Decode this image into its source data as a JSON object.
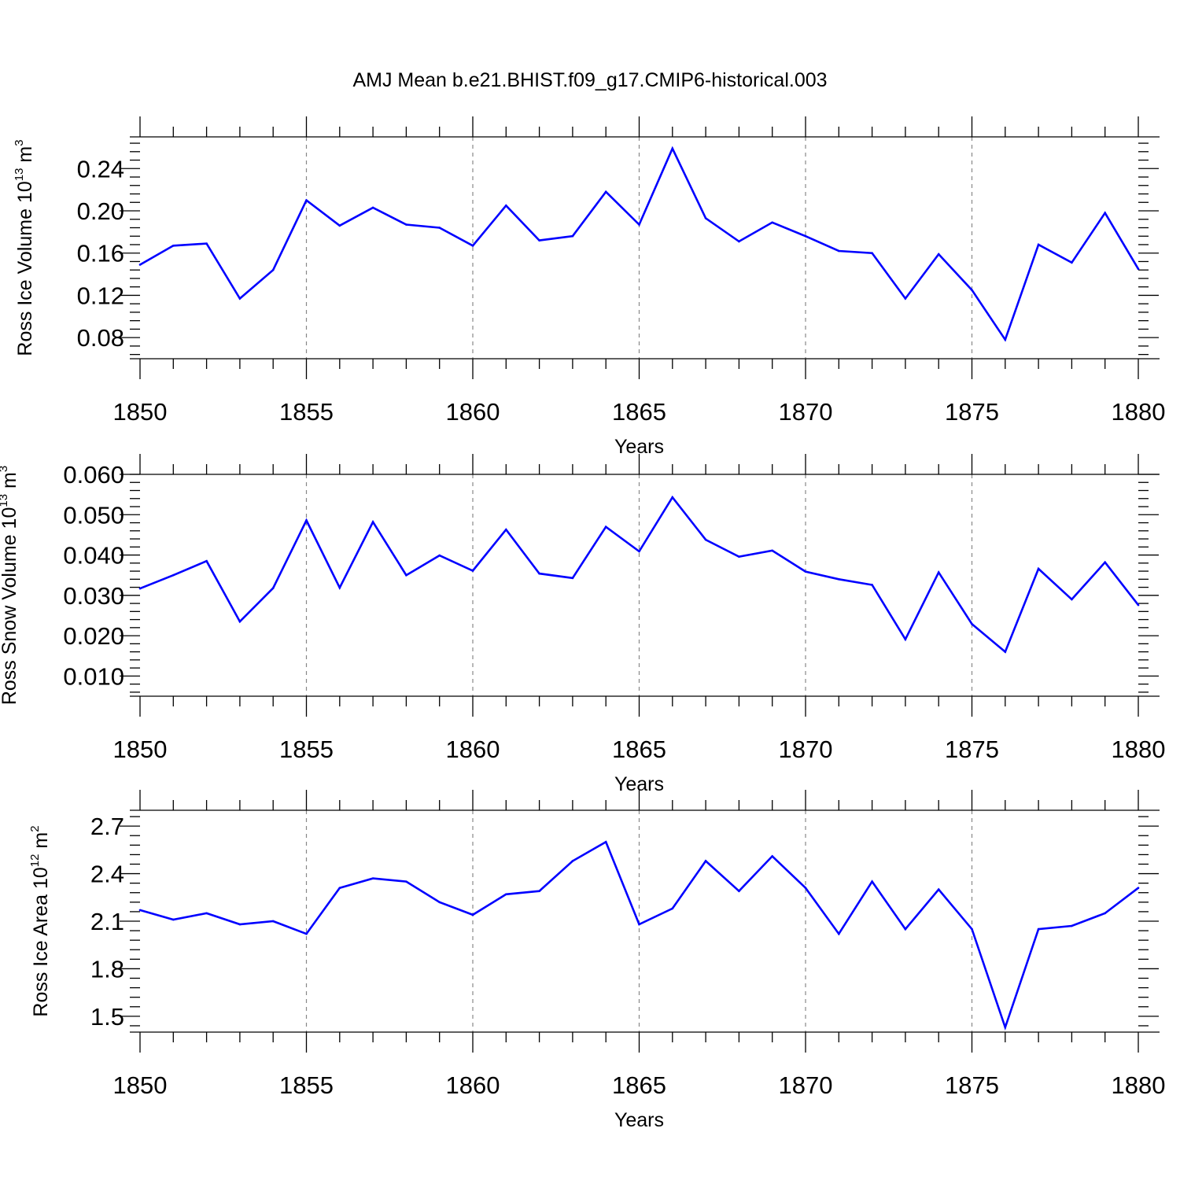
{
  "title": "AMJ Mean b.e21.BHIST.f09_g17.CMIP6-historical.003",
  "colors": {
    "series": "#0000ff",
    "axis": "#000000",
    "grid": "#888888"
  },
  "chart_data": [
    {
      "type": "line",
      "xlabel": "Years",
      "ylabel": {
        "prefix": "Ross Ice Volume 10",
        "exponent": "13",
        "unit": " m",
        "unit_exponent": "3"
      },
      "xlim": [
        1850,
        1880
      ],
      "ylim": [
        0.06,
        0.27
      ],
      "x_ticks": [
        "1850",
        "1855",
        "1860",
        "1865",
        "1870",
        "1875",
        "1880"
      ],
      "y_ticks": [
        "0.08",
        "0.12",
        "0.16",
        "0.20",
        "0.24"
      ],
      "grid": "dashed vertical at labeled x ticks",
      "x": [
        1850,
        1851,
        1852,
        1853,
        1854,
        1855,
        1856,
        1857,
        1858,
        1859,
        1860,
        1861,
        1862,
        1863,
        1864,
        1865,
        1866,
        1867,
        1868,
        1869,
        1870,
        1871,
        1872,
        1873,
        1874,
        1875,
        1876,
        1877,
        1878,
        1879,
        1880
      ],
      "values": [
        0.149,
        0.167,
        0.169,
        0.117,
        0.144,
        0.21,
        0.186,
        0.203,
        0.187,
        0.184,
        0.167,
        0.205,
        0.172,
        0.176,
        0.218,
        0.187,
        0.259,
        0.193,
        0.171,
        0.189,
        0.176,
        0.162,
        0.16,
        0.117,
        0.159,
        0.125,
        0.078,
        0.168,
        0.151,
        0.198,
        0.145
      ]
    },
    {
      "type": "line",
      "xlabel": "Years",
      "ylabel": {
        "prefix": "Ross Snow Volume 10",
        "exponent": "13",
        "unit": " m",
        "unit_exponent": "3"
      },
      "xlim": [
        1850,
        1880
      ],
      "ylim": [
        0.005,
        0.06
      ],
      "x_ticks": [
        "1850",
        "1855",
        "1860",
        "1865",
        "1870",
        "1875",
        "1880"
      ],
      "y_ticks": [
        "0.010",
        "0.020",
        "0.030",
        "0.040",
        "0.050",
        "0.060"
      ],
      "grid": "dashed vertical at labeled x ticks",
      "x": [
        1850,
        1851,
        1852,
        1853,
        1854,
        1855,
        1856,
        1857,
        1858,
        1859,
        1860,
        1861,
        1862,
        1863,
        1864,
        1865,
        1866,
        1867,
        1868,
        1869,
        1870,
        1871,
        1872,
        1873,
        1874,
        1875,
        1876,
        1877,
        1878,
        1879,
        1880
      ],
      "values": [
        0.0317,
        0.035,
        0.0385,
        0.0235,
        0.0318,
        0.0486,
        0.0319,
        0.0482,
        0.035,
        0.0399,
        0.0361,
        0.0463,
        0.0354,
        0.0343,
        0.047,
        0.0409,
        0.0543,
        0.0438,
        0.0396,
        0.0411,
        0.0359,
        0.034,
        0.0326,
        0.0191,
        0.0357,
        0.0229,
        0.016,
        0.0366,
        0.029,
        0.0382,
        0.0276
      ]
    },
    {
      "type": "line",
      "xlabel": "Years",
      "ylabel": {
        "prefix": "Ross Ice Area 10",
        "exponent": "12",
        "unit": " m",
        "unit_exponent": "2"
      },
      "xlim": [
        1850,
        1880
      ],
      "ylim": [
        1.4,
        2.8
      ],
      "x_ticks": [
        "1850",
        "1855",
        "1860",
        "1865",
        "1870",
        "1875",
        "1880"
      ],
      "y_ticks": [
        "1.5",
        "1.8",
        "2.1",
        "2.4",
        "2.7"
      ],
      "grid": "dashed vertical at labeled x ticks",
      "x": [
        1850,
        1851,
        1852,
        1853,
        1854,
        1855,
        1856,
        1857,
        1858,
        1859,
        1860,
        1861,
        1862,
        1863,
        1864,
        1865,
        1866,
        1867,
        1868,
        1869,
        1870,
        1871,
        1872,
        1873,
        1874,
        1875,
        1876,
        1877,
        1878,
        1879,
        1880
      ],
      "values": [
        2.17,
        2.11,
        2.15,
        2.08,
        2.1,
        2.02,
        2.31,
        2.37,
        2.35,
        2.22,
        2.14,
        2.27,
        2.29,
        2.48,
        2.6,
        2.08,
        2.18,
        2.48,
        2.29,
        2.51,
        2.31,
        2.02,
        2.35,
        2.05,
        2.3,
        2.05,
        1.43,
        2.05,
        2.07,
        2.15,
        2.31
      ]
    }
  ]
}
